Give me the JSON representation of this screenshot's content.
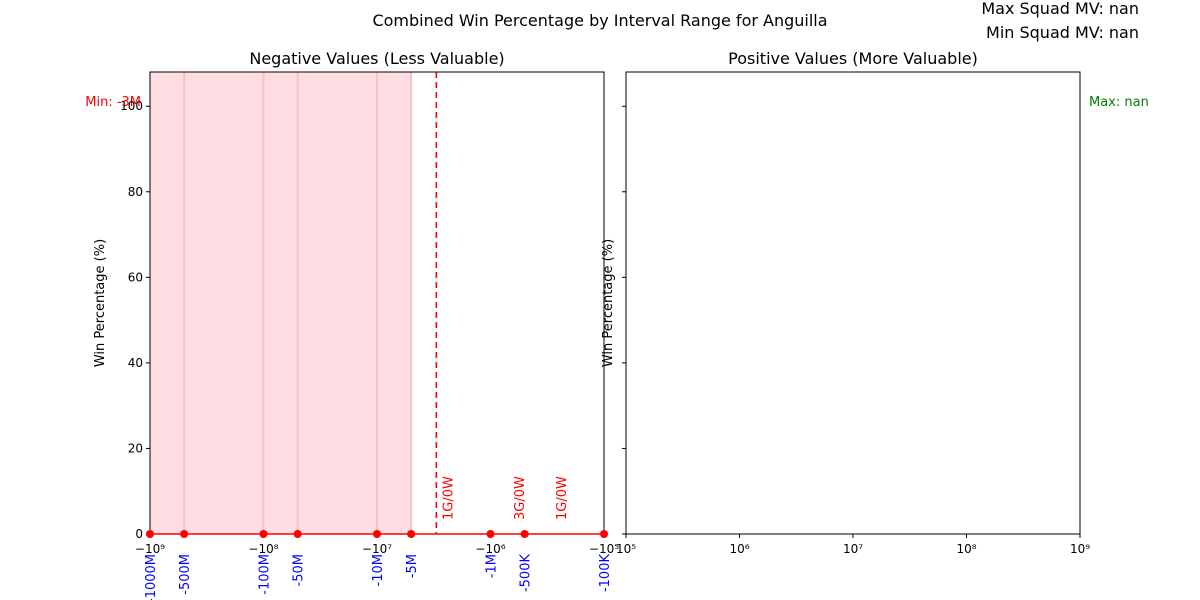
{
  "chart_data": {
    "title": "Combined Win Percentage by Interval Range for Anguilla",
    "info_lines": [
      "Max Squad MV: nan",
      "Min Squad MV: nan"
    ],
    "ylim": [
      0,
      108
    ],
    "y_ticks": [
      0,
      20,
      40,
      60,
      80,
      100
    ],
    "panels": [
      {
        "title": "Negative Values (Less Valuable)",
        "type": "line",
        "x_scale": "symlog-negative",
        "xlim": [
          -1000000000,
          -100000
        ],
        "ylabel": "Win Percentage (%)",
        "x_tick_labels": [
          "−10⁹",
          "−10⁸",
          "−10⁷",
          "−10⁶",
          "−10⁵"
        ],
        "x_tick_values": [
          -1000000000,
          -100000000,
          -10000000,
          -1000000,
          -100000
        ],
        "category_labels": [
          "-1000M",
          "-500M",
          "-100M",
          "-50M",
          "-10M",
          "-5M",
          "-1M",
          "-500K",
          "-100K"
        ],
        "category_values": [
          -1000000000,
          -500000000,
          -100000000,
          -50000000,
          -10000000,
          -5000000,
          -1000000,
          -500000,
          -100000
        ],
        "series": [
          {
            "x": [
              -1000000000,
              -500000000,
              -100000000,
              -50000000,
              -10000000,
              -5000000,
              -1000000,
              -500000,
              -100000
            ],
            "y": [
              0,
              0,
              0,
              0,
              0,
              0,
              0,
              0,
              0
            ],
            "color": "#ff0000"
          }
        ],
        "shaded_region": {
          "from": -1000000000,
          "to": -5000000,
          "color": "#ffdde3"
        },
        "min_line": {
          "value": -3000000,
          "label": "Min: -3M",
          "color": "#ff0000"
        },
        "annotations": [
          {
            "x": -3000000,
            "text": "1G/0W"
          },
          {
            "x": -700000,
            "text": "3G/0W"
          },
          {
            "x": -300000,
            "text": "1G/0W"
          }
        ]
      },
      {
        "title": "Positive Values (More Valuable)",
        "type": "line",
        "x_scale": "log",
        "xlim": [
          100000,
          1000000000
        ],
        "ylabel": "Win Percentage (%)",
        "x_tick_labels": [
          "10⁵",
          "10⁶",
          "10⁷",
          "10⁸",
          "10⁹"
        ],
        "x_tick_values": [
          100000,
          1000000,
          10000000,
          100000000,
          1000000000
        ],
        "series": [],
        "max_label": {
          "text": "Max: nan",
          "color": "#008000"
        }
      }
    ]
  }
}
